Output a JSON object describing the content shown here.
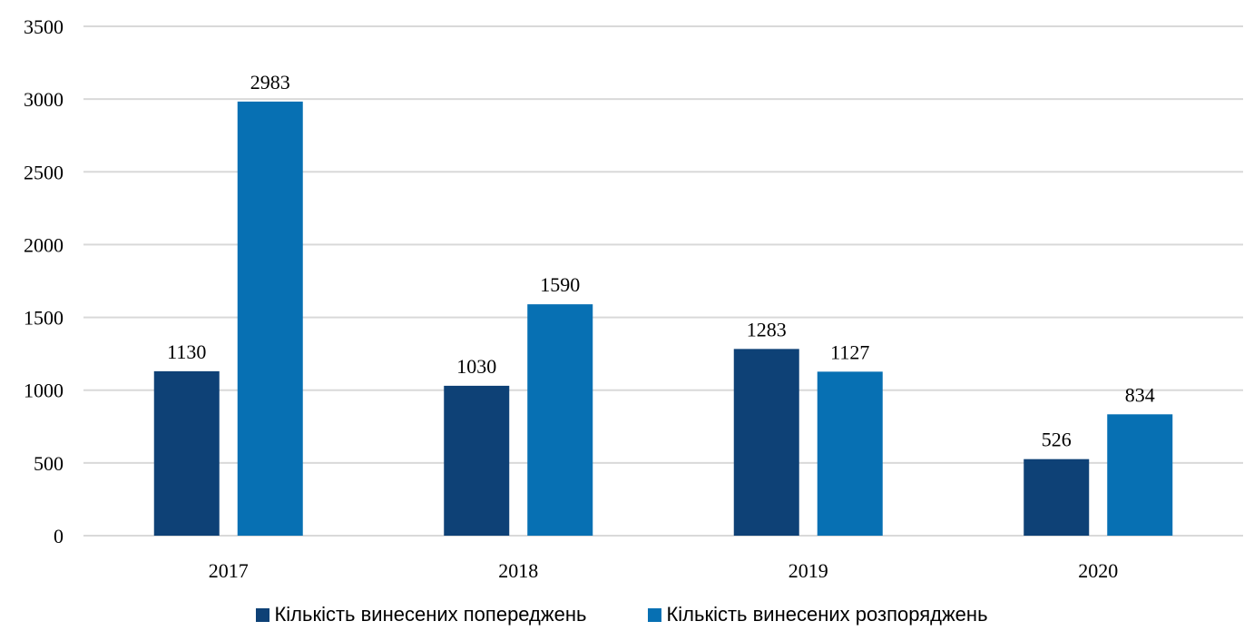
{
  "chart_data": {
    "type": "bar",
    "categories": [
      "2017",
      "2018",
      "2019",
      "2020"
    ],
    "series": [
      {
        "name": "Кількість винесених  попереджень",
        "color": "#0e4176",
        "values": [
          1130,
          1030,
          1283,
          526
        ]
      },
      {
        "name": "Кількість винесених  розпоряджень",
        "color": "#0770b3",
        "values": [
          2983,
          1590,
          1127,
          834
        ]
      }
    ],
    "ylim": [
      0,
      3500
    ],
    "yticks": [
      "0",
      "500",
      "1000",
      "1500",
      "2000",
      "2500",
      "3000",
      "3500"
    ],
    "grid": true,
    "legend_position": "bottom",
    "gridline_color": "#d9d9d9"
  }
}
